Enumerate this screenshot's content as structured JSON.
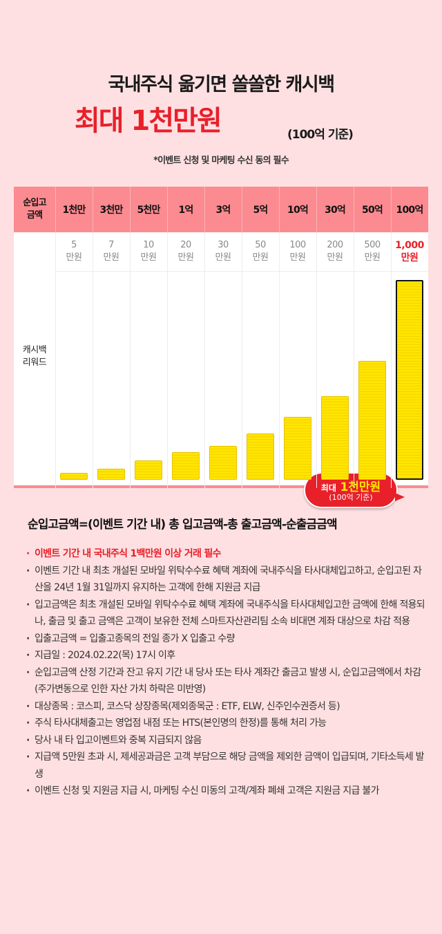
{
  "header": {
    "title": "국내주식 옮기면 쏠쏠한 캐시백",
    "highlight": "최대 1천만원",
    "basis": "(100억 기준)",
    "note": "*이벤트 신청 및 마케팅 수신 동의 필수"
  },
  "table": {
    "header_label": "순입고\n금액",
    "row_label": "캐시백\n리워드"
  },
  "callout": {
    "prefix": "최대",
    "amount": "1천만원",
    "basis": "(100억 기준)"
  },
  "chart_data": {
    "type": "bar",
    "categories": [
      "1천만",
      "3천만",
      "5천만",
      "1억",
      "3억",
      "5억",
      "10억",
      "30억",
      "50억",
      "100억"
    ],
    "value_labels": [
      "5\n만원",
      "7\n만원",
      "10\n만원",
      "20\n만원",
      "30\n만원",
      "50\n만원",
      "100\n만원",
      "200\n만원",
      "500\n만원",
      "1,000\n만원"
    ],
    "values": [
      5,
      7,
      10,
      20,
      30,
      50,
      100,
      200,
      500,
      1000
    ],
    "highlight_index": 9,
    "colors": {
      "bar": "#ffe500",
      "header": "#fb8b90",
      "accent": "#e8202a"
    }
  },
  "notes": {
    "title": "순입고금액=(이벤트 기간 내) 총 입고금액-총 출고금액-순출금금액",
    "items": [
      "이벤트 기간 내 국내주식 1백만원 이상 거래 필수",
      "이벤트 기간 내 최초 개설된 모바일 위탁수수료 혜택 계좌에 국내주식을 타사대체입고하고, 순입고된 자산을 24년 1월 31일까지 유지하는 고객에 한해 지원금 지급",
      "입고금액은 최초 개설된 모바일 위탁수수료 혜택 계좌에 국내주식을 타사대체입고한 금액에 한해 적용되나, 출금 및 출고 금액은 고객이 보유한 전체 스마트자산관리팀 소속 비대면 계좌 대상으로 차감 적용",
      "입출고금액 = 입출고종목의 전일 종가 X 입출고 수량",
      "지급일 : 2024.02.22(목) 17시 이후",
      "순입고금액 산정 기간과 잔고 유지 기간 내 당사 또는 타사 계좌간 출금고 발생 시, 순입고금액에서 차감(주가변동으로 인한 자산 가치 하락은 미반영)",
      "대상종목 : 코스피, 코스닥 상장종목(제외종목군 : ETF, ELW, 신주인수권증서 등)",
      "주식 타사대체출고는 영업점 내점 또는 HTS(본인명의 한정)를 통해 처리 가능",
      "당사 내 타 입고이벤트와 중복 지급되지 않음",
      "지급액 5만원 초과 시, 제세공과금은 고객 부담으로 해당 금액을 제외한 금액이 입급되며, 기타소득세 발생",
      "이벤트 신청 및 지원금 지급 시, 마케팅 수신 미동의 고객/계좌 폐쇄 고객은 지원금 지급 불가"
    ]
  }
}
